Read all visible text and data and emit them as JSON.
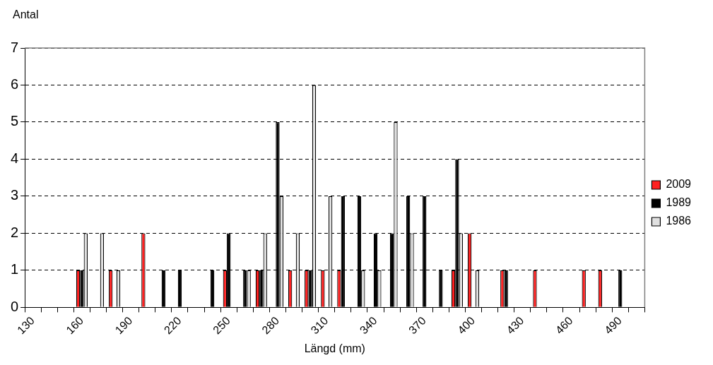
{
  "chart_data": {
    "type": "bar",
    "xlabel": "Längd (mm)",
    "ylabel": "Antal",
    "categories": [
      "130",
      null,
      null,
      "160",
      null,
      null,
      "190",
      null,
      null,
      "220",
      null,
      null,
      "250",
      null,
      null,
      "280",
      null,
      null,
      "310",
      null,
      null,
      "340",
      null,
      null,
      "370",
      null,
      null,
      "400",
      null,
      null,
      "430",
      null,
      null,
      "460",
      null,
      null,
      "490",
      null
    ],
    "series": [
      {
        "name": "2009",
        "color": "#ff2020",
        "values": [
          0,
          0,
          0,
          1,
          0,
          1,
          0,
          2,
          0,
          0,
          0,
          0,
          1,
          0,
          1,
          0,
          1,
          1,
          1,
          1,
          0,
          0,
          0,
          0,
          0,
          0,
          1,
          2,
          0,
          1,
          0,
          1,
          0,
          0,
          1,
          1,
          0,
          0
        ]
      },
      {
        "name": "1989",
        "color": "#000000",
        "values": [
          0,
          0,
          0,
          1,
          0,
          0,
          0,
          0,
          1,
          1,
          0,
          1,
          2,
          1,
          1,
          5,
          0,
          1,
          0,
          3,
          3,
          2,
          2,
          3,
          3,
          1,
          4,
          0,
          0,
          1,
          0,
          0,
          0,
          0,
          0,
          0,
          1,
          0
        ]
      },
      {
        "name": "1986",
        "color": "#e0e0e0",
        "values": [
          0,
          0,
          0,
          2,
          2,
          1,
          0,
          0,
          0,
          0,
          0,
          0,
          0,
          1,
          2,
          3,
          2,
          6,
          3,
          0,
          1,
          1,
          5,
          2,
          0,
          0,
          2,
          1,
          0,
          0,
          0,
          0,
          0,
          0,
          0,
          0,
          0,
          0
        ]
      }
    ],
    "ylim": [
      0,
      7
    ],
    "yticks": [
      0,
      1,
      2,
      3,
      4,
      5,
      6,
      7
    ],
    "grid": "y",
    "line_style": "dashed",
    "legend": "right"
  }
}
